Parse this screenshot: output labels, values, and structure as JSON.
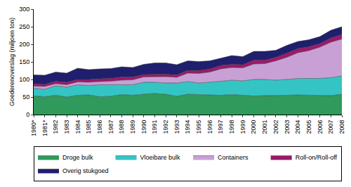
{
  "chart_data": {
    "type": "area",
    "stacked": true,
    "y_label": "Goederenoverslag (miljoen ton)",
    "categories": [
      "1980*",
      "1981*",
      "1982",
      "1983",
      "1984",
      "1985",
      "1986",
      "1987",
      "1988",
      "1989",
      "1990",
      "1991",
      "1992",
      "1993",
      "1994",
      "1995",
      "1996",
      "1997",
      "1998",
      "1999",
      "2000",
      "2001",
      "2002",
      "2003",
      "2004",
      "2005",
      "2006",
      "2007",
      "2008"
    ],
    "series": [
      {
        "name": "Droge bulk",
        "color": "#2f9a5c",
        "values": [
          53,
          51,
          55,
          50,
          55,
          56,
          51,
          52,
          57,
          55,
          58,
          60,
          58,
          52,
          58,
          57,
          55,
          55,
          57,
          55,
          53,
          54,
          54,
          55,
          56,
          55,
          54,
          54,
          58
        ]
      },
      {
        "name": "Vloeibare bulk",
        "color": "#35c4c4",
        "values": [
          22,
          21,
          27,
          28,
          30,
          27,
          34,
          33,
          29,
          30,
          34,
          32,
          32,
          38,
          36,
          33,
          37,
          40,
          41,
          41,
          47,
          46,
          44,
          45,
          47,
          48,
          49,
          51,
          52
        ]
      },
      {
        "name": "Containers",
        "color": "#c9a0d6",
        "values": [
          6,
          8,
          6,
          7,
          8,
          9,
          9,
          10,
          12,
          14,
          15,
          16,
          18,
          16,
          24,
          27,
          29,
          35,
          36,
          37,
          44,
          45,
          55,
          63,
          73,
          79,
          89,
          101,
          105
        ]
      },
      {
        "name": "Roll-on/Roll-off",
        "color": "#9c1a6a",
        "values": [
          7,
          6,
          7,
          7,
          7,
          8,
          8,
          8,
          9,
          8,
          7,
          7,
          7,
          7,
          8,
          8,
          9,
          10,
          9,
          9,
          11,
          10,
          10,
          12,
          12,
          11,
          10,
          12,
          13
        ]
      },
      {
        "name": "Overig stukgoed",
        "color": "#1f1f6e",
        "values": [
          25,
          26,
          26,
          26,
          32,
          28,
          28,
          28,
          29,
          27,
          29,
          32,
          32,
          29,
          27,
          26,
          23,
          21,
          25,
          23,
          25,
          25,
          20,
          22,
          20,
          20,
          20,
          22,
          22
        ]
      }
    ],
    "ylim": [
      0,
      300
    ],
    "yticks": [
      0,
      50,
      100,
      150,
      200,
      250,
      300
    ],
    "grid": false,
    "legend": "bottom"
  }
}
